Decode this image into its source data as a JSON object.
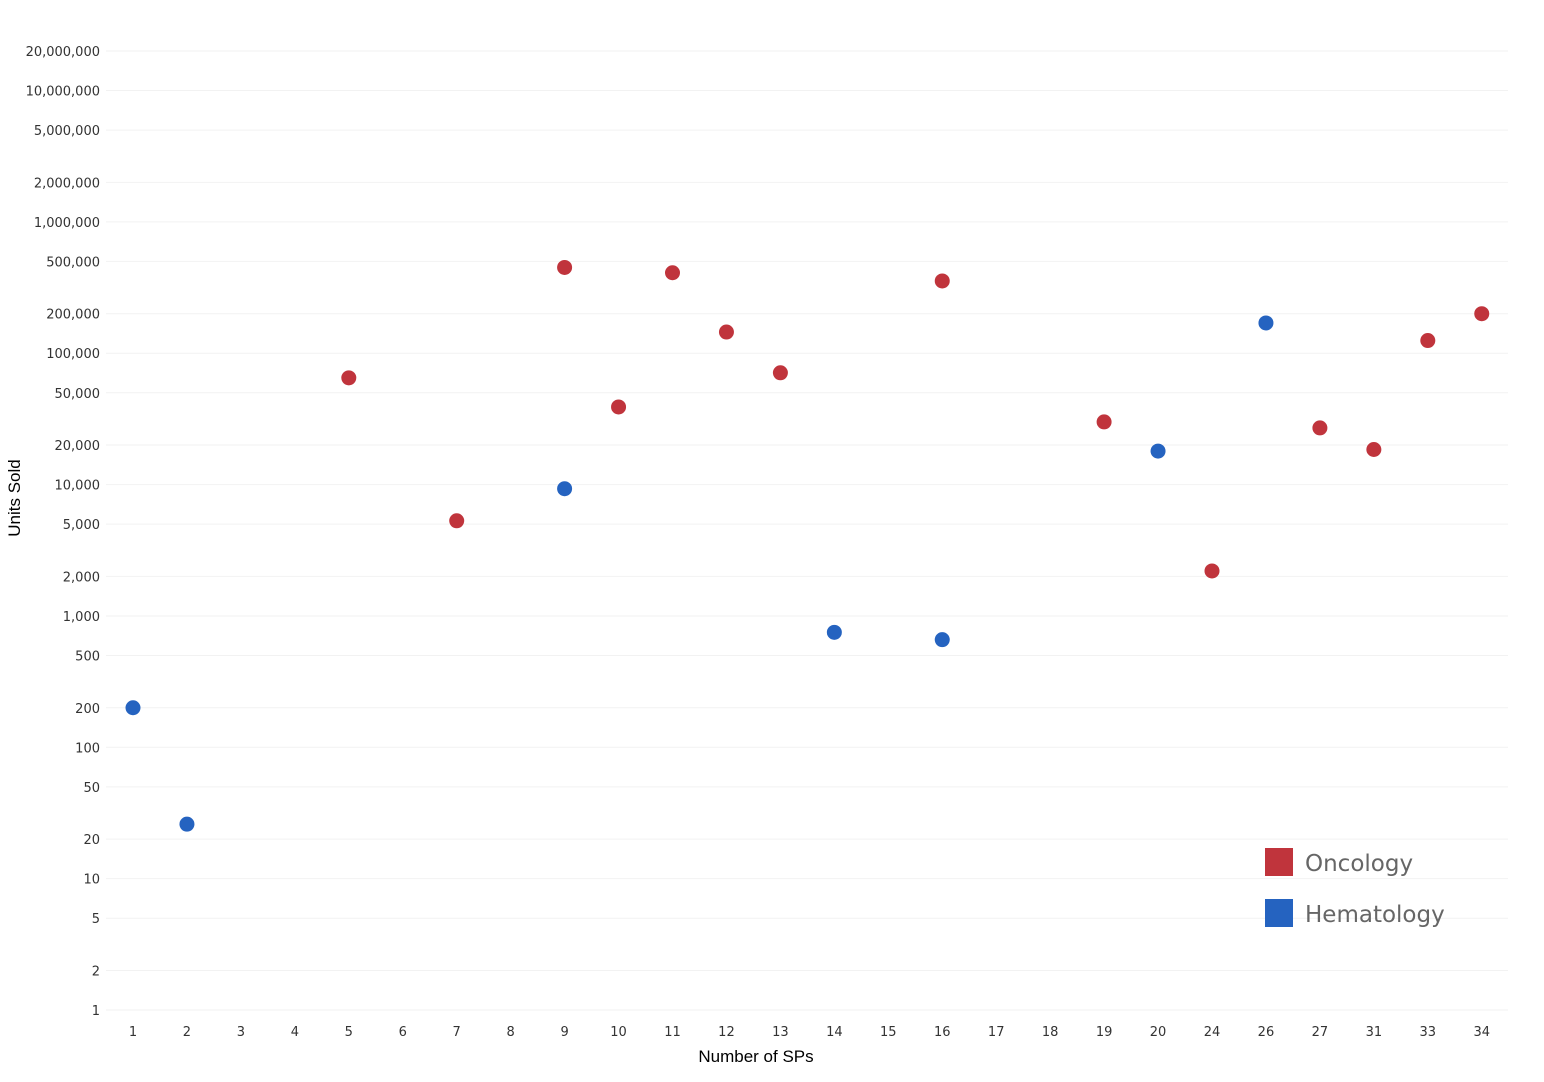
{
  "chart_data": {
    "type": "scatter",
    "xlabel": "Number of SPs",
    "ylabel": "Units Sold",
    "y_scale": "log",
    "ylim": [
      1,
      20000000
    ],
    "x_categories": [
      "1",
      "2",
      "3",
      "4",
      "5",
      "6",
      "7",
      "8",
      "9",
      "10",
      "11",
      "12",
      "13",
      "14",
      "15",
      "16",
      "17",
      "18",
      "19",
      "20",
      "24",
      "26",
      "27",
      "31",
      "33",
      "34"
    ],
    "y_ticks": [
      {
        "value": 1,
        "label": "1"
      },
      {
        "value": 2,
        "label": "2"
      },
      {
        "value": 5,
        "label": "5"
      },
      {
        "value": 10,
        "label": "10"
      },
      {
        "value": 20,
        "label": "20"
      },
      {
        "value": 50,
        "label": "50"
      },
      {
        "value": 100,
        "label": "100"
      },
      {
        "value": 200,
        "label": "200"
      },
      {
        "value": 500,
        "label": "500"
      },
      {
        "value": 1000,
        "label": "1,000"
      },
      {
        "value": 2000,
        "label": "2,000"
      },
      {
        "value": 5000,
        "label": "5,000"
      },
      {
        "value": 10000,
        "label": "10,000"
      },
      {
        "value": 20000,
        "label": "20,000"
      },
      {
        "value": 50000,
        "label": "50,000"
      },
      {
        "value": 100000,
        "label": "100,000"
      },
      {
        "value": 200000,
        "label": "200,000"
      },
      {
        "value": 500000,
        "label": "500,000"
      },
      {
        "value": 1000000,
        "label": "1,000,000"
      },
      {
        "value": 2000000,
        "label": "2,000,000"
      },
      {
        "value": 5000000,
        "label": "5,000,000"
      },
      {
        "value": 10000000,
        "label": "10,000,000"
      },
      {
        "value": 20000000,
        "label": "20,000,000"
      }
    ],
    "grid": true,
    "legend_position": "bottom-right",
    "series": [
      {
        "name": "Oncology",
        "color": "#c0343c",
        "points": [
          {
            "x": "5",
            "y": 65000
          },
          {
            "x": "7",
            "y": 5300
          },
          {
            "x": "9",
            "y": 450000
          },
          {
            "x": "10",
            "y": 39000
          },
          {
            "x": "11",
            "y": 410000
          },
          {
            "x": "12",
            "y": 145000
          },
          {
            "x": "13",
            "y": 71000
          },
          {
            "x": "16",
            "y": 355000
          },
          {
            "x": "19",
            "y": 30000
          },
          {
            "x": "24",
            "y": 2200
          },
          {
            "x": "27",
            "y": 27000
          },
          {
            "x": "31",
            "y": 18500
          },
          {
            "x": "33",
            "y": 125000
          },
          {
            "x": "34",
            "y": 200000
          }
        ]
      },
      {
        "name": "Hematology",
        "color": "#2563c0",
        "points": [
          {
            "x": "1",
            "y": 200
          },
          {
            "x": "2",
            "y": 26
          },
          {
            "x": "9",
            "y": 9300
          },
          {
            "x": "14",
            "y": 750
          },
          {
            "x": "16",
            "y": 660
          },
          {
            "x": "20",
            "y": 18000
          },
          {
            "x": "26",
            "y": 170000
          }
        ]
      }
    ]
  }
}
